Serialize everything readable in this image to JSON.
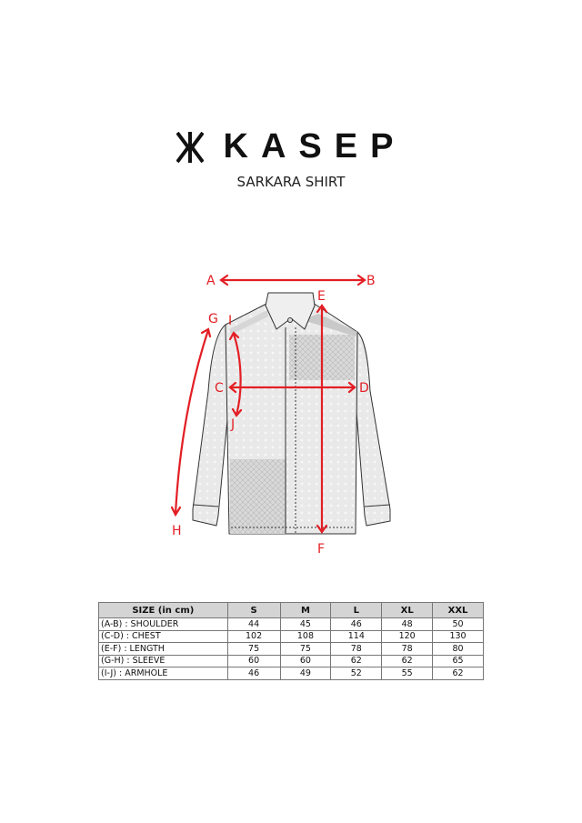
{
  "brand": {
    "name": "KASEP",
    "logo_mark": "Ж"
  },
  "product": {
    "title": "SARKARA SHIRT"
  },
  "diagram": {
    "labels": {
      "A": "A",
      "B": "B",
      "C": "C",
      "D": "D",
      "E": "E",
      "F": "F",
      "G": "G",
      "H": "H",
      "I": "I",
      "J": "J"
    },
    "arrow_color": "#e31e24"
  },
  "size_table": {
    "headers": [
      "SIZE (in cm)",
      "S",
      "M",
      "L",
      "XL",
      "XXL"
    ],
    "rows": [
      {
        "label": "(A-B) : SHOULDER",
        "values": [
          "44",
          "45",
          "46",
          "48",
          "50"
        ]
      },
      {
        "label": "(C-D) : CHEST",
        "values": [
          "102",
          "108",
          "114",
          "120",
          "130"
        ]
      },
      {
        "label": "(E-F) : LENGTH",
        "values": [
          "75",
          "75",
          "78",
          "78",
          "80"
        ]
      },
      {
        "label": "(G-H) : SLEEVE",
        "values": [
          "60",
          "60",
          "62",
          "62",
          "65"
        ]
      },
      {
        "label": "(I-J) : ARMHOLE",
        "values": [
          "46",
          "49",
          "52",
          "55",
          "62"
        ]
      }
    ]
  }
}
